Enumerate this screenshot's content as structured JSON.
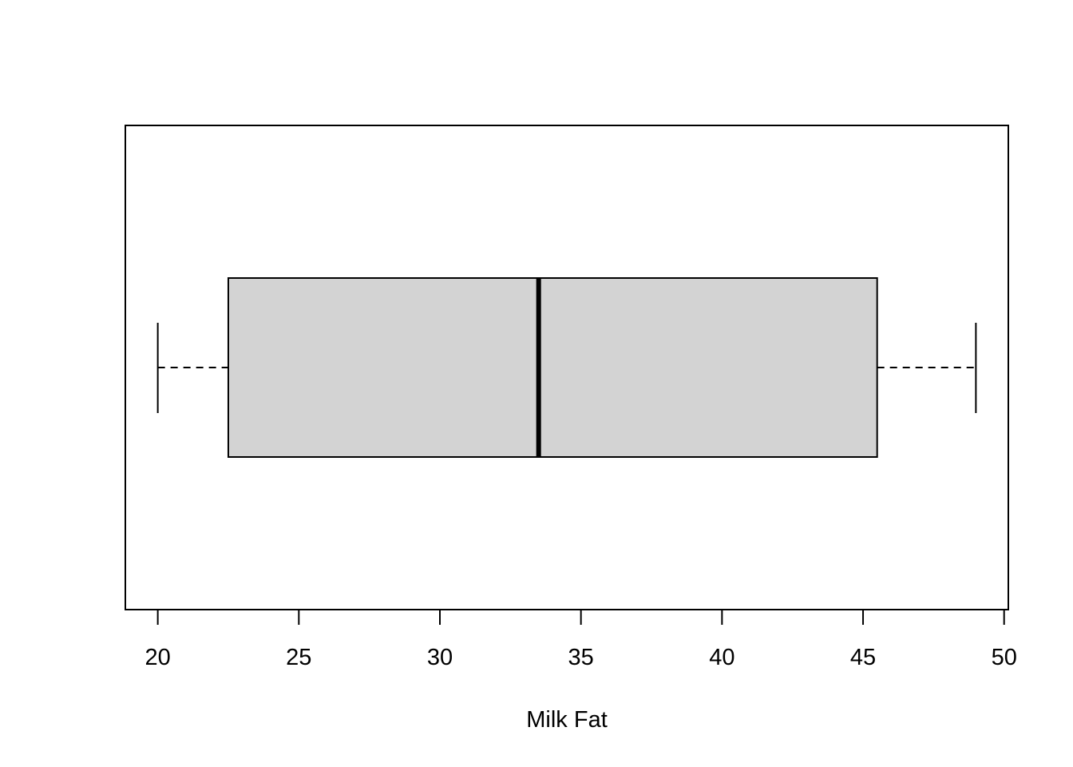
{
  "chart_data": {
    "type": "boxplot",
    "orientation": "horizontal",
    "title": "",
    "xlabel": "Milk Fat",
    "ylabel": "",
    "xlim": [
      18.85,
      50.15
    ],
    "x_ticks": [
      20,
      25,
      30,
      35,
      40,
      45,
      50
    ],
    "x_tick_labels": [
      "20",
      "25",
      "30",
      "35",
      "40",
      "45",
      "50"
    ],
    "box": {
      "whisker_low": 20,
      "q1": 22.5,
      "median": 33.5,
      "q3": 45.5,
      "whisker_high": 49
    },
    "box_fill": "#d3d3d3",
    "line_color": "#000000",
    "grid": false
  }
}
